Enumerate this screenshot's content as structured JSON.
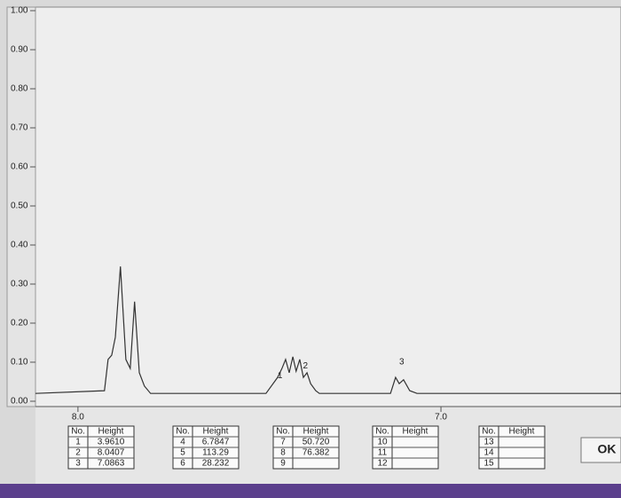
{
  "chart_data": {
    "type": "line",
    "x": [
      8.117,
      7.927,
      7.917,
      7.907,
      7.897,
      7.883,
      7.868,
      7.856,
      7.844,
      7.831,
      7.817,
      7.8,
      7.482,
      7.45,
      7.438,
      7.428,
      7.418,
      7.408,
      7.399,
      7.389,
      7.379,
      7.369,
      7.359,
      7.345,
      7.335,
      7.139,
      7.125,
      7.115,
      7.103,
      7.086,
      7.066,
      6.504
    ],
    "series": [
      {
        "color": "#333333",
        "values": [
          0.02,
          0.027,
          0.107,
          0.118,
          0.164,
          0.345,
          0.107,
          0.084,
          0.255,
          0.073,
          0.039,
          0.02,
          0.02,
          0.061,
          0.084,
          0.107,
          0.073,
          0.114,
          0.077,
          0.107,
          0.061,
          0.073,
          0.045,
          0.027,
          0.02,
          0.02,
          0.061,
          0.045,
          0.055,
          0.027,
          0.02,
          0.02
        ]
      }
    ],
    "xlim": [
      8.117,
      6.504
    ],
    "xticks": [
      {
        "value": 8,
        "label": "8.0"
      },
      {
        "value": 7,
        "label": "7.0"
      }
    ],
    "ylim": [
      0,
      1
    ],
    "yticks": [
      {
        "value": 0,
        "label": "0.00"
      },
      {
        "value": 0.1,
        "label": "0.10"
      },
      {
        "value": 0.2,
        "label": "0.20"
      },
      {
        "value": 0.3,
        "label": "0.30"
      },
      {
        "value": 0.4,
        "label": "0.40"
      },
      {
        "value": 0.5,
        "label": "0.50"
      },
      {
        "value": 0.6,
        "label": "0.60"
      },
      {
        "value": 0.7,
        "label": "0.70"
      },
      {
        "value": 0.8,
        "label": "0.80"
      },
      {
        "value": 0.9,
        "label": "0.90"
      },
      {
        "value": 1,
        "label": "1.00"
      }
    ],
    "annotations": [
      {
        "text": "1",
        "x": 7.45,
        "y": 0.065,
        "color": "#d33"
      },
      {
        "text": "2",
        "x": 7.38,
        "y": 0.09,
        "color": "#d33"
      },
      {
        "text": "3",
        "x": 7.115,
        "y": 0.1,
        "color": "#d33"
      }
    ]
  },
  "tables": [
    {
      "header": [
        "No.",
        "Height"
      ],
      "rows": [
        [
          "1",
          "3.9610"
        ],
        [
          "2",
          "8.0407"
        ],
        [
          "3",
          "7.0863"
        ]
      ]
    },
    {
      "header": [
        "No.",
        "Height"
      ],
      "rows": [
        [
          "4",
          "6.7847"
        ],
        [
          "5",
          "113.29"
        ],
        [
          "6",
          "28.232"
        ]
      ]
    },
    {
      "header": [
        "No.",
        "Height"
      ],
      "rows": [
        [
          "7",
          "50.720"
        ],
        [
          "8",
          "76.382"
        ],
        [
          "9"
        ]
      ]
    },
    {
      "header": [
        "No.",
        "Height"
      ],
      "rows": [
        [
          "10"
        ],
        [
          "11"
        ],
        [
          "12"
        ]
      ]
    },
    {
      "header": [
        "No.",
        "Height"
      ],
      "rows": [
        [
          "13"
        ],
        [
          "14"
        ],
        [
          "15"
        ]
      ]
    }
  ],
  "button": "OK"
}
